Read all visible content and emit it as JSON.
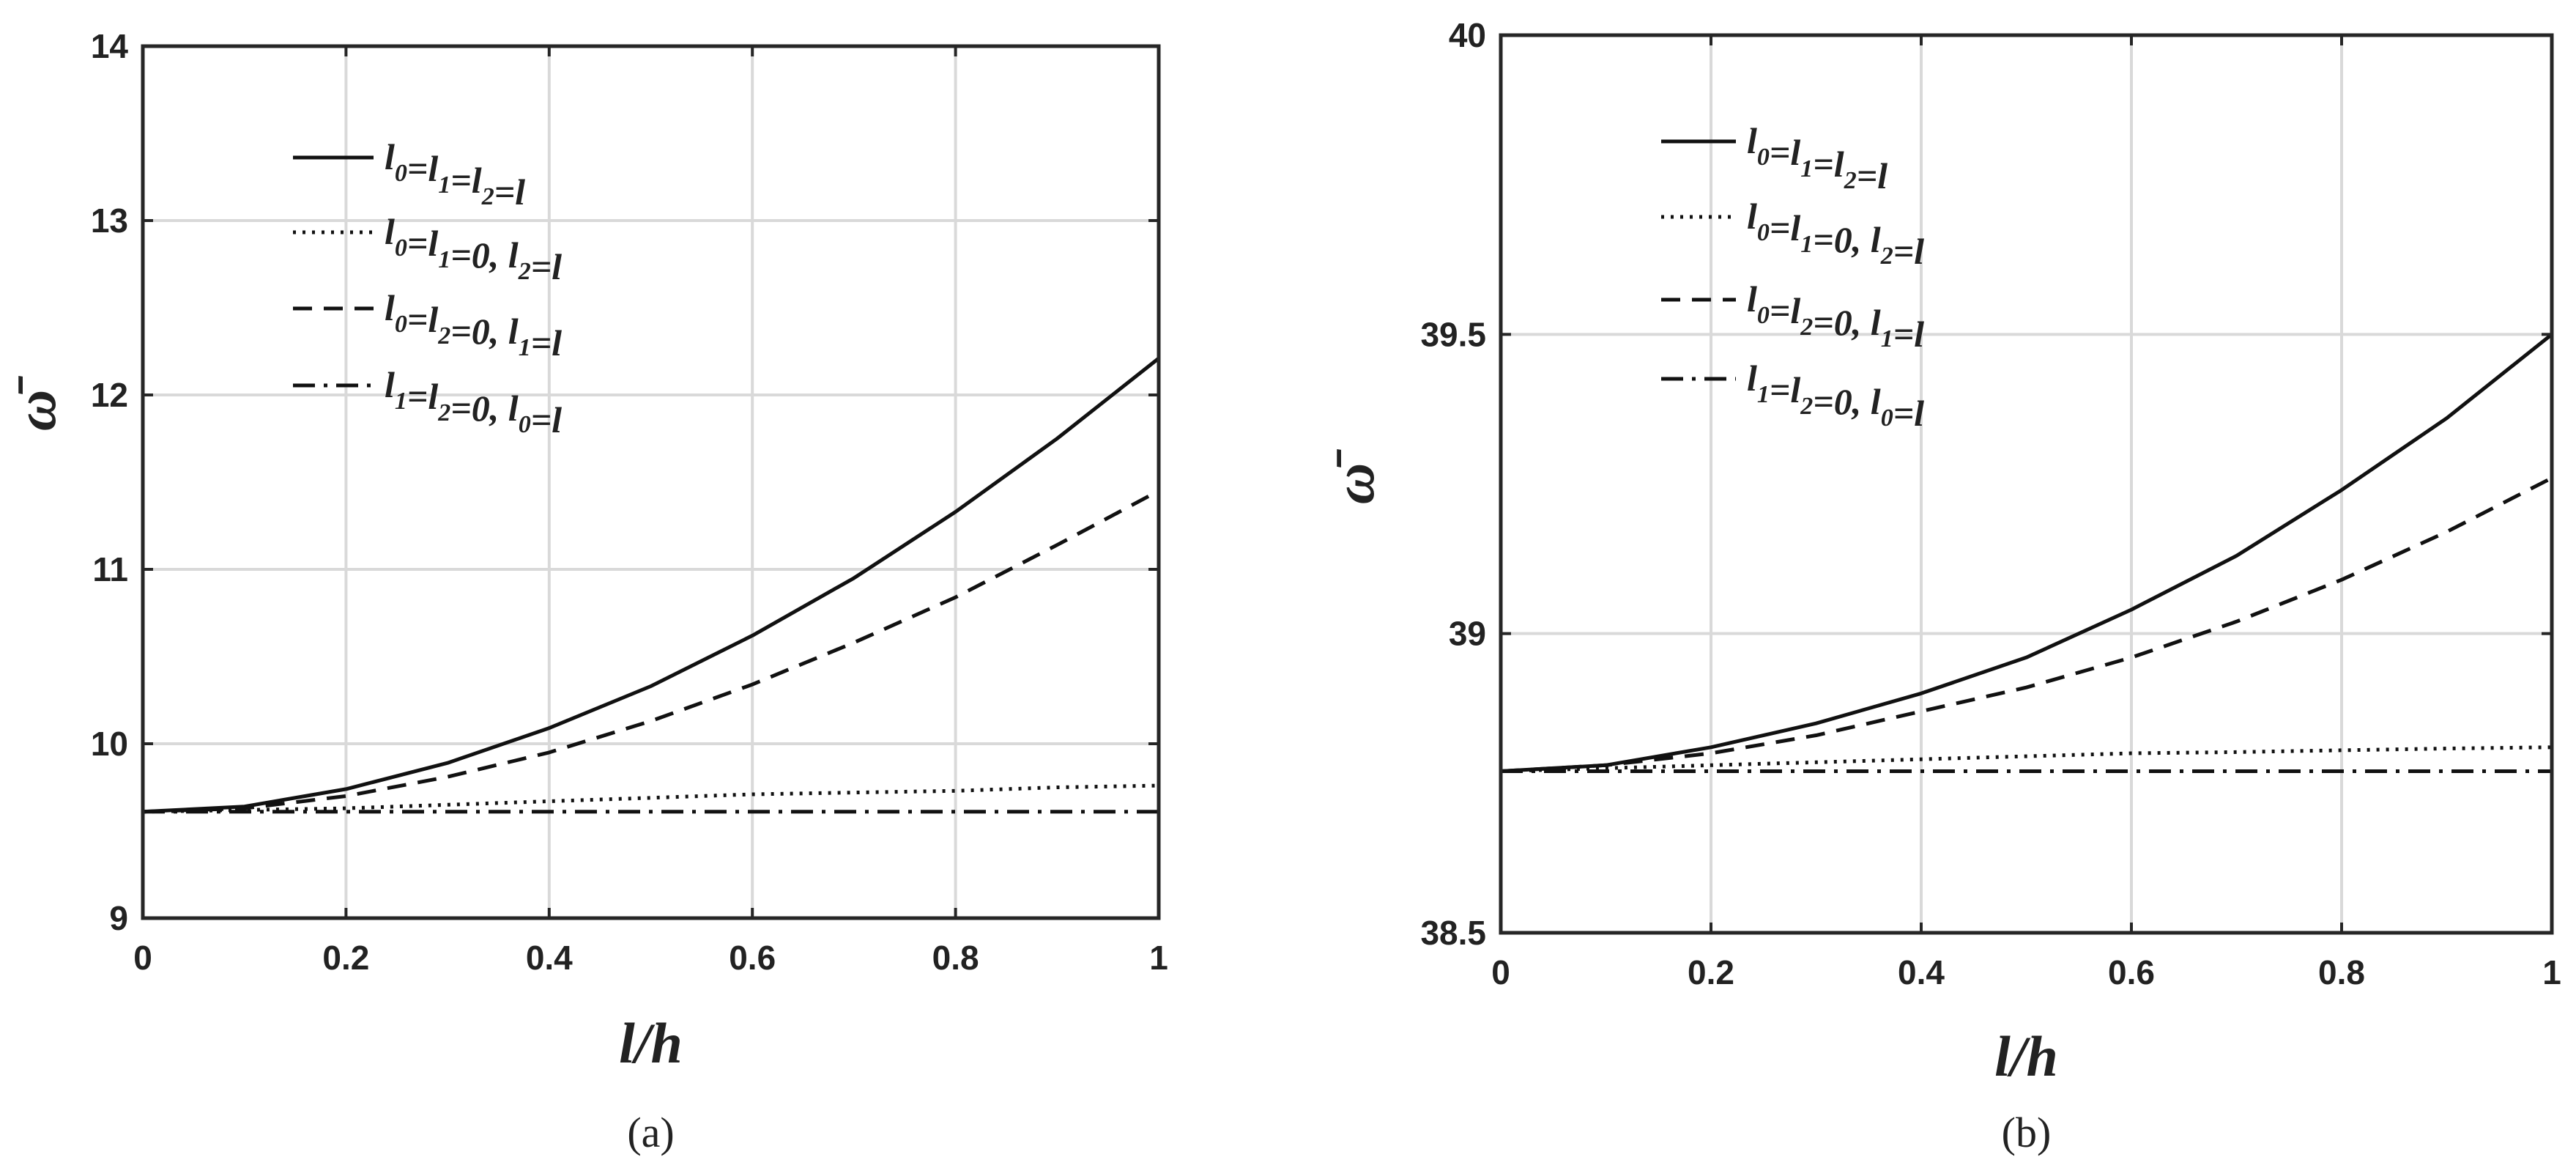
{
  "chart_data": [
    {
      "type": "line",
      "panel_label": "(a)",
      "xlabel": "l/h",
      "ylabel": "ω̄",
      "xlim": [
        0,
        1
      ],
      "ylim": [
        9,
        14
      ],
      "xticks": [
        0,
        0.2,
        0.4,
        0.6,
        0.8,
        1
      ],
      "xtick_labels": [
        "0",
        "0.2",
        "0.4",
        "0.6",
        "0.8",
        "1"
      ],
      "yticks": [
        9,
        10,
        11,
        12,
        13,
        14
      ],
      "ytick_labels": [
        "9",
        "10",
        "11",
        "12",
        "13",
        "14"
      ],
      "grid": true,
      "legend_position": "top-left",
      "x": [
        0,
        0.1,
        0.2,
        0.3,
        0.4,
        0.5,
        0.6,
        0.7,
        0.8,
        0.9,
        1.0
      ],
      "series": [
        {
          "name": "l0=l1=l2=l",
          "legend": [
            [
              "l",
              "0"
            ],
            [
              "=l",
              "1"
            ],
            [
              "=l",
              "2"
            ],
            [
              "=l",
              ""
            ]
          ],
          "style": "solid",
          "values": [
            9.61,
            9.64,
            9.74,
            9.89,
            10.09,
            10.33,
            10.62,
            10.95,
            11.33,
            11.75,
            12.21
          ]
        },
        {
          "name": "l0=l1=0, l2=l",
          "legend": [
            [
              "l",
              "0"
            ],
            [
              "=l",
              "1"
            ],
            [
              "=0, l",
              "2"
            ],
            [
              "=l",
              ""
            ]
          ],
          "style": "dotted",
          "values": [
            9.61,
            9.62,
            9.63,
            9.65,
            9.67,
            9.69,
            9.71,
            9.72,
            9.73,
            9.75,
            9.76
          ]
        },
        {
          "name": "l0=l2=0, l1=l",
          "legend": [
            [
              "l",
              "0"
            ],
            [
              "=l",
              "2"
            ],
            [
              "=0, l",
              "1"
            ],
            [
              "=l",
              ""
            ]
          ],
          "style": "dashed",
          "values": [
            9.61,
            9.63,
            9.7,
            9.81,
            9.95,
            10.13,
            10.34,
            10.58,
            10.84,
            11.14,
            11.45
          ]
        },
        {
          "name": "l1=l2=0, l0=l",
          "legend": [
            [
              "l",
              "1"
            ],
            [
              "=l",
              "2"
            ],
            [
              "=0, l",
              "0"
            ],
            [
              "=l",
              ""
            ]
          ],
          "style": "dashdot",
          "values": [
            9.61,
            9.61,
            9.61,
            9.61,
            9.61,
            9.61,
            9.61,
            9.61,
            9.61,
            9.61,
            9.61
          ]
        }
      ]
    },
    {
      "type": "line",
      "panel_label": "(b)",
      "xlabel": "l/h",
      "ylabel": "ω̄",
      "xlim": [
        0,
        1
      ],
      "ylim": [
        38.5,
        40
      ],
      "xticks": [
        0,
        0.2,
        0.4,
        0.6,
        0.8,
        1
      ],
      "xtick_labels": [
        "0",
        "0.2",
        "0.4",
        "0.6",
        "0.8",
        "1"
      ],
      "yticks": [
        38.5,
        39,
        39.5,
        40
      ],
      "ytick_labels": [
        "38.5",
        "39",
        "39.5",
        "40"
      ],
      "grid": true,
      "legend_position": "top-left",
      "x": [
        0,
        0.1,
        0.2,
        0.3,
        0.4,
        0.5,
        0.6,
        0.7,
        0.8,
        0.9,
        1.0
      ],
      "series": [
        {
          "name": "l0=l1=l2=l",
          "legend": [
            [
              "l",
              "0"
            ],
            [
              "=l",
              "1"
            ],
            [
              "=l",
              "2"
            ],
            [
              "=l",
              ""
            ]
          ],
          "style": "solid",
          "values": [
            38.77,
            38.78,
            38.81,
            38.85,
            38.9,
            38.96,
            39.04,
            39.13,
            39.24,
            39.36,
            39.5
          ]
        },
        {
          "name": "l0=l1=0, l2=l",
          "legend": [
            [
              "l",
              "0"
            ],
            [
              "=l",
              "1"
            ],
            [
              "=0, l",
              "2"
            ],
            [
              "=l",
              ""
            ]
          ],
          "style": "dotted",
          "values": [
            38.77,
            38.775,
            38.78,
            38.785,
            38.79,
            38.795,
            38.8,
            38.802,
            38.805,
            38.808,
            38.81
          ]
        },
        {
          "name": "l0=l2=0, l1=l",
          "legend": [
            [
              "l",
              "0"
            ],
            [
              "=l",
              "2"
            ],
            [
              "=0, l",
              "1"
            ],
            [
              "=l",
              ""
            ]
          ],
          "style": "dashed",
          "values": [
            38.77,
            38.78,
            38.8,
            38.83,
            38.87,
            38.91,
            38.96,
            39.02,
            39.09,
            39.17,
            39.26
          ]
        },
        {
          "name": "l1=l2=0, l0=l",
          "legend": [
            [
              "l",
              "1"
            ],
            [
              "=l",
              "2"
            ],
            [
              "=0, l",
              "0"
            ],
            [
              "=l",
              ""
            ]
          ],
          "style": "dashdot",
          "values": [
            38.77,
            38.77,
            38.77,
            38.77,
            38.77,
            38.77,
            38.77,
            38.77,
            38.77,
            38.77,
            38.77
          ]
        }
      ]
    }
  ]
}
